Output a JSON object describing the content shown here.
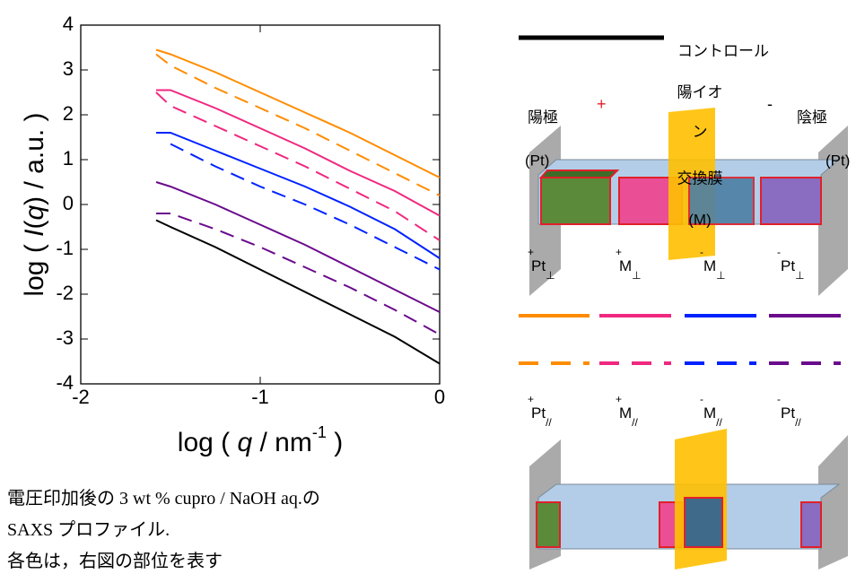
{
  "chart_data": {
    "type": "line",
    "ylabel": [
      "log ( ",
      "I",
      "(",
      "q",
      ") / a.u. )"
    ],
    "xlabel": [
      "log ( ",
      "q",
      " / nm",
      "-1",
      " )"
    ],
    "x": [
      -1.58,
      -1.5,
      -1.25,
      -1,
      -0.75,
      -0.5,
      -0.25,
      0
    ],
    "xlim": [
      -2,
      0
    ],
    "xticks": [
      -2,
      -1,
      0
    ],
    "ylim": [
      -4,
      4
    ],
    "yticks": [
      -4,
      -3,
      -2,
      -1,
      0,
      1,
      2,
      3,
      4
    ],
    "series": [
      {
        "color": "#ff8c00",
        "dash": false,
        "values": [
          3.45,
          3.35,
          2.95,
          2.5,
          2.05,
          1.6,
          1.1,
          0.6
        ]
      },
      {
        "color": "#ff8c00",
        "dash": true,
        "values": [
          3.35,
          3.1,
          2.6,
          2.15,
          1.7,
          1.2,
          0.7,
          0.2
        ]
      },
      {
        "color": "#f0287f",
        "dash": false,
        "values": [
          2.55,
          2.55,
          2.15,
          1.7,
          1.25,
          0.75,
          0.3,
          -0.25
        ]
      },
      {
        "color": "#f0287f",
        "dash": true,
        "values": [
          2.5,
          2.2,
          1.75,
          1.3,
          0.85,
          0.35,
          -0.15,
          -0.8
        ]
      },
      {
        "color": "#0022ff",
        "dash": false,
        "values": [
          1.6,
          1.6,
          1.2,
          0.8,
          0.4,
          -0.05,
          -0.55,
          -1.2
        ]
      },
      {
        "color": "#0022ff",
        "dash": true,
        "values": [
          null,
          1.35,
          0.85,
          0.4,
          0,
          -0.45,
          -0.95,
          -1.45
        ]
      },
      {
        "color": "#6a0a8c",
        "dash": false,
        "values": [
          0.5,
          0.4,
          0,
          -0.45,
          -0.9,
          -1.4,
          -1.9,
          -2.4
        ]
      },
      {
        "color": "#6a0a8c",
        "dash": true,
        "values": [
          -0.2,
          -0.2,
          -0.55,
          -0.95,
          -1.4,
          -1.85,
          -2.35,
          -2.9
        ]
      },
      {
        "color": "#000000",
        "dash": false,
        "values": [
          -0.35,
          -0.5,
          -0.95,
          -1.45,
          -1.95,
          -2.45,
          -2.95,
          -3.55
        ]
      }
    ]
  },
  "diagram": {
    "control": "コントロール",
    "membrane": [
      "陽イオ",
      "ン",
      "交換膜",
      "(M)"
    ],
    "anode": [
      "陽極",
      "(Pt)"
    ],
    "cathode": [
      "陰極",
      "(Pt)"
    ],
    "plus": "+",
    "minus": "-",
    "perp_labels": [
      {
        "sign": "+",
        "base": "Pt",
        "sub": "⊥"
      },
      {
        "sign": "+",
        "base": "M",
        "sub": "⊥"
      },
      {
        "sign": "-",
        "base": "M",
        "sub": "⊥"
      },
      {
        "sign": "-",
        "base": "Pt",
        "sub": "⊥"
      }
    ],
    "para_labels": [
      {
        "sign": "+",
        "base": "Pt",
        "sub": "//"
      },
      {
        "sign": "+",
        "base": "M",
        "sub": "//"
      },
      {
        "sign": "-",
        "base": "M",
        "sub": "//"
      },
      {
        "sign": "-",
        "base": "Pt",
        "sub": "//"
      }
    ]
  },
  "caption": [
    "電圧印加後の 3 wt % cupro / NaOH aq.の",
    "SAXS プロファイル.",
    "各色は，右図の部位を表す"
  ]
}
